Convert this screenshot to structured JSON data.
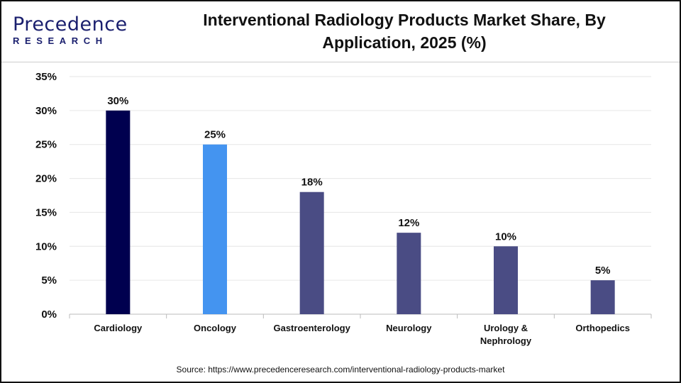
{
  "logo": {
    "line1": "Precedence",
    "line2": "RESEARCH"
  },
  "chart_data": {
    "type": "bar",
    "title": "Interventional Radiology Products Market Share, By Application, 2025 (%)",
    "title_lines": [
      "Interventional Radiology Products Market Share, By",
      "Application, 2025 (%)"
    ],
    "categories": [
      "Cardiology",
      "Oncology",
      "Gastroenterology",
      "Neurology",
      "Urology & Nephrology",
      "Orthopedics"
    ],
    "category_lines": [
      [
        "Cardiology"
      ],
      [
        "Oncology"
      ],
      [
        "Gastroenterology"
      ],
      [
        "Neurology"
      ],
      [
        "Urology &",
        "Nephrology"
      ],
      [
        "Orthopedics"
      ]
    ],
    "values": [
      30,
      25,
      18,
      12,
      10,
      5
    ],
    "data_labels": [
      "30%",
      "25%",
      "18%",
      "12%",
      "10%",
      "5%"
    ],
    "colors": [
      "#00004f",
      "#4494f0",
      "#4a4c84",
      "#4a4c84",
      "#4a4c84",
      "#4a4c84"
    ],
    "ylim": [
      0,
      35
    ],
    "yticks": [
      0,
      5,
      10,
      15,
      20,
      25,
      30,
      35
    ],
    "ytick_labels": [
      "0%",
      "5%",
      "10%",
      "15%",
      "20%",
      "25%",
      "30%",
      "35%"
    ],
    "xlabel": "",
    "ylabel": "",
    "grid": true,
    "legend": "none"
  },
  "source": "Source: https://www.precedenceresearch.com/interventional-radiology-products-market"
}
